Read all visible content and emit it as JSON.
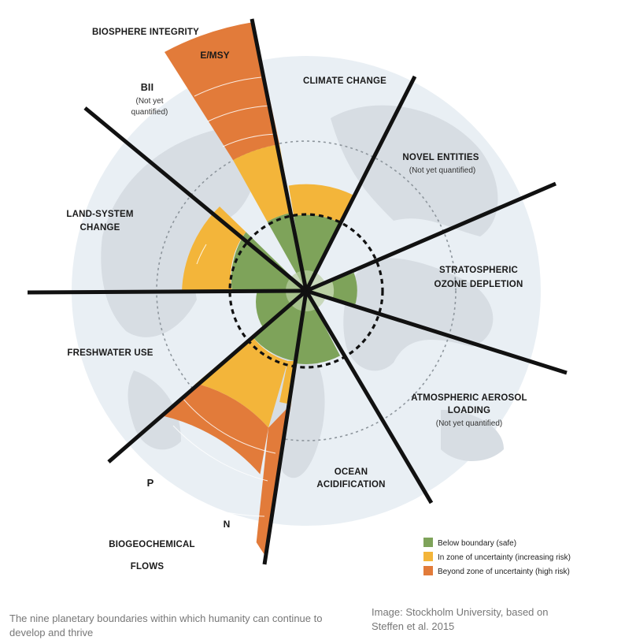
{
  "colors": {
    "safe": "#7ea35a",
    "uncertainty": "#f3b53a",
    "high_risk": "#e27b3a",
    "background_disc": "#e9eff4",
    "land": "#d7dde3",
    "boundary_line": "#111111"
  },
  "boundaries": [
    {
      "id": "climate-change",
      "label_lines": [
        "CLIMATE CHANGE"
      ],
      "sub_lines": [],
      "level": "uncertainty"
    },
    {
      "id": "novel-entities",
      "label_lines": [
        "NOVEL ENTITIES"
      ],
      "sub_lines": [
        "(Not yet quantified)"
      ],
      "level": "not quantified"
    },
    {
      "id": "stratospheric-ozone-depletion",
      "label_lines": [
        "STRATOSPHERIC",
        "OZONE DEPLETION"
      ],
      "sub_lines": [],
      "level": "safe"
    },
    {
      "id": "atmospheric-aerosol-loading",
      "label_lines": [
        "ATMOSPHERIC AEROSOL",
        "LOADING"
      ],
      "sub_lines": [
        "(Not yet quantified)"
      ],
      "level": "not quantified"
    },
    {
      "id": "ocean-acidification",
      "label_lines": [
        "OCEAN",
        "ACIDIFICATION"
      ],
      "sub_lines": [],
      "level": "safe"
    },
    {
      "id": "biogeochemical-flows",
      "label_lines": [
        "BIOGEOCHEMICAL",
        "FLOWS"
      ],
      "sub_lines": [],
      "level": "high risk",
      "components": [
        {
          "label": "P",
          "level": "high risk"
        },
        {
          "label": "N",
          "level": "high risk"
        }
      ]
    },
    {
      "id": "freshwater-use",
      "label_lines": [
        "FRESHWATER USE"
      ],
      "sub_lines": [],
      "level": "safe"
    },
    {
      "id": "land-system-change",
      "label_lines": [
        "LAND-SYSTEM",
        "CHANGE"
      ],
      "sub_lines": [],
      "level": "uncertainty"
    },
    {
      "id": "biosphere-integrity",
      "label_lines": [
        "BIOSPHERE INTEGRITY"
      ],
      "sub_lines": [],
      "level": "high risk",
      "components": [
        {
          "label": "E/MSY",
          "level": "high risk"
        },
        {
          "label": "BII",
          "level": "not quantified",
          "note": "(Not yet quantified)"
        }
      ]
    }
  ],
  "legend": [
    {
      "key": "safe",
      "label": "Below boundary (safe)"
    },
    {
      "key": "uncertainty",
      "label": "In zone of uncertainty (increasing risk)"
    },
    {
      "key": "high_risk",
      "label": "Beyond zone of uncertainty (high risk)"
    }
  ],
  "caption_lines": [
    "The nine planetary boundaries within which humanity can continue to",
    "develop and thrive"
  ],
  "credit_lines": [
    "Image: Stockholm University, based on",
    "Steffen et al. 2015"
  ]
}
